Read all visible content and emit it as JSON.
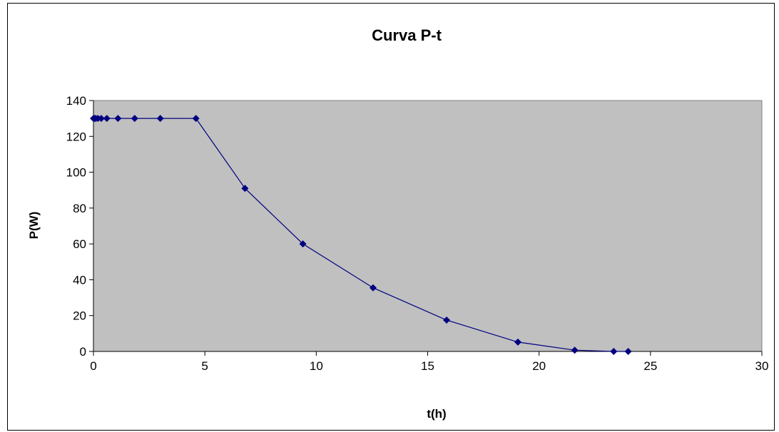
{
  "chart_data": {
    "type": "scatter",
    "title": "Curva P-t",
    "xlabel": "t(h)",
    "ylabel": "P(W)",
    "xlim": [
      0,
      30
    ],
    "ylim": [
      0,
      140
    ],
    "xticks": [
      0,
      5,
      10,
      15,
      20,
      25,
      30
    ],
    "yticks": [
      0,
      20,
      40,
      60,
      80,
      100,
      120,
      140
    ],
    "xtick_labels": [
      "0",
      "5",
      "10",
      "15",
      "20",
      "25",
      "30"
    ],
    "ytick_labels": [
      "0",
      "20",
      "40",
      "60",
      "80",
      "100",
      "120",
      "140"
    ],
    "grid": false,
    "legend": "none",
    "plot_background": "#c0c0c0",
    "series": [
      {
        "color": "#000080",
        "marker": "diamond",
        "line": "straight",
        "x": [
          0,
          0.05,
          0.1,
          0.2,
          0.35,
          0.6,
          1.1,
          1.85,
          3.0,
          4.6,
          6.8,
          9.4,
          12.55,
          15.85,
          19.05,
          21.6,
          23.35,
          24.0
        ],
        "y": [
          130,
          130,
          130,
          130,
          130,
          130,
          130,
          130,
          130,
          130,
          91,
          60,
          35.5,
          17.5,
          5.2,
          0.7,
          0,
          0
        ]
      }
    ]
  }
}
